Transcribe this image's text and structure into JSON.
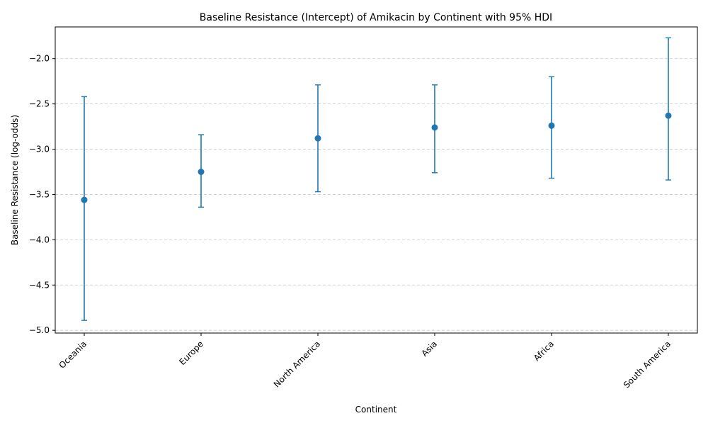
{
  "chart_data": {
    "type": "scatter",
    "title": "Baseline Resistance (Intercept) of Amikacin by Continent with 95% HDI",
    "xlabel": "Continent",
    "ylabel": "Baseline Resistance (log-odds)",
    "categories": [
      "Oceania",
      "Europe",
      "North America",
      "Asia",
      "Africa",
      "South America"
    ],
    "values": [
      -3.56,
      -3.25,
      -2.88,
      -2.76,
      -2.74,
      -2.63
    ],
    "hdi_lower": [
      -4.89,
      -3.64,
      -3.47,
      -3.26,
      -3.32,
      -3.34
    ],
    "hdi_upper": [
      -2.42,
      -2.84,
      -2.29,
      -2.29,
      -2.2,
      -1.77
    ],
    "y_ticks": [
      -5.0,
      -4.5,
      -4.0,
      -3.5,
      -3.0,
      -2.5,
      -2.0
    ],
    "ylim": [
      -5.03,
      -1.65
    ],
    "grid": "horizontal dashed",
    "color": "#1f77b4"
  }
}
